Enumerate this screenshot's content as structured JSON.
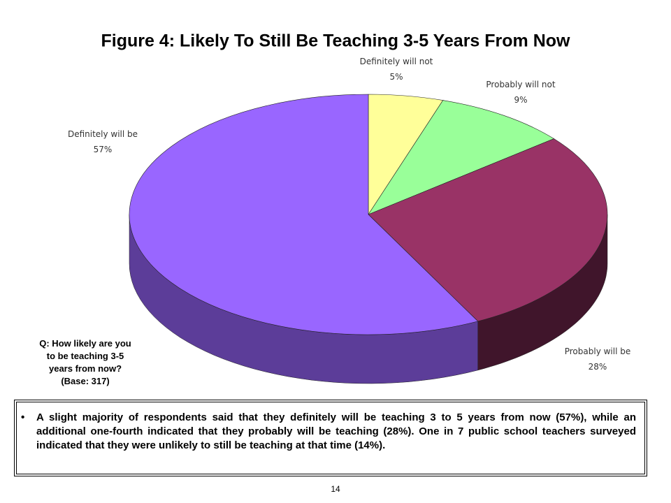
{
  "chart_data": {
    "type": "pie",
    "title": "Figure 4:  Likely To Still Be Teaching 3-5 Years From Now",
    "categories": [
      "Definitely will not",
      "Probably will not",
      "Probably will be",
      "Definitely will be"
    ],
    "values": [
      5,
      9,
      28,
      57
    ],
    "value_labels": [
      "5%",
      "9%",
      "28%",
      "57%"
    ],
    "colors": [
      "#ffff99",
      "#99ff99",
      "#993366",
      "#9966ff"
    ],
    "question": [
      "Q:  How likely are you",
      "to be teaching 3-5",
      "years from now?",
      "(Base: 317)"
    ]
  },
  "summary": "A slight majority of respondents said that they definitely will be teaching 3 to 5 years from now (57%), while an additional one-fourth indicated that they probably will be teaching (28%). One in 7 public school teachers surveyed indicated that they were unlikely to still be teaching at that time (14%).",
  "page_number": "14"
}
